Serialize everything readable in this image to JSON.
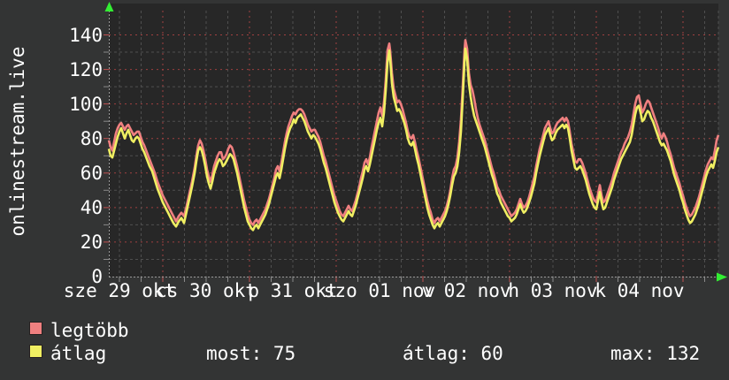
{
  "title": {
    "vertical": "onlinestream.live"
  },
  "legend": {
    "items": [
      {
        "label": "legtöbb",
        "color": "#f08080"
      },
      {
        "label": "átlag",
        "color": "#f0ef62"
      }
    ]
  },
  "stats": [
    {
      "text": "most: 75"
    },
    {
      "text": "átlag: 60"
    },
    {
      "text": "max: 132"
    }
  ],
  "colors": {
    "page_bg": "#333434",
    "plot_bg": "#272727",
    "grid_minor": "#4f4f4f",
    "grid_major": "#a04040",
    "axis": "#9a9a9a",
    "arrow": "#33ee33",
    "text": "#ffffff",
    "series_max": "#f08080",
    "series_avg": "#f0ef62"
  },
  "chart_data": {
    "type": "line",
    "title": "onlinestream.live",
    "ylabel": "",
    "xlabel": "",
    "ylim": [
      0,
      140
    ],
    "y_major_step": 20,
    "y_minor_step": 10,
    "grid": true,
    "legend_position": "bottom-left",
    "x_day_labels": [
      "sze 29 okt",
      "cs 30 okt",
      "p 31 okt",
      "szo 01 nov",
      "v 02 nov",
      "h 03 nov",
      "k 04 nov"
    ],
    "y_tick_labels": [
      "0",
      "20",
      "40",
      "60",
      "80",
      "100",
      "120",
      "140"
    ],
    "series": [
      {
        "name": "legtöbb",
        "color": "#f08080",
        "point_index": 2
      },
      {
        "name": "átlag",
        "color": "#f0ef62",
        "point_index": 1
      }
    ],
    "points_format": "[x_px, atlag_value, legtobb_value]",
    "points": [
      [
        123,
        74,
        79
      ],
      [
        125,
        70,
        75
      ],
      [
        127,
        69,
        73
      ],
      [
        129,
        73,
        78
      ],
      [
        131,
        77,
        83
      ],
      [
        133,
        81,
        86
      ],
      [
        135,
        84,
        88
      ],
      [
        137,
        86,
        89
      ],
      [
        139,
        83,
        87
      ],
      [
        141,
        80,
        85
      ],
      [
        143,
        83,
        87
      ],
      [
        145,
        85,
        88
      ],
      [
        147,
        82,
        86
      ],
      [
        149,
        79,
        84
      ],
      [
        151,
        78,
        82
      ],
      [
        153,
        80,
        83
      ],
      [
        155,
        81,
        84
      ],
      [
        157,
        80,
        84
      ],
      [
        159,
        77,
        81
      ],
      [
        161,
        74,
        78
      ],
      [
        163,
        72,
        76
      ],
      [
        166,
        68,
        72
      ],
      [
        169,
        64,
        68
      ],
      [
        172,
        61,
        64
      ],
      [
        175,
        56,
        60
      ],
      [
        178,
        51,
        55
      ],
      [
        181,
        47,
        51
      ],
      [
        184,
        43,
        47
      ],
      [
        187,
        40,
        44
      ],
      [
        190,
        37,
        41
      ],
      [
        193,
        34,
        38
      ],
      [
        196,
        31,
        35
      ],
      [
        199,
        29,
        32
      ],
      [
        202,
        32,
        35
      ],
      [
        205,
        34,
        37
      ],
      [
        208,
        31,
        35
      ],
      [
        211,
        38,
        41
      ],
      [
        214,
        45,
        48
      ],
      [
        217,
        52,
        55
      ],
      [
        220,
        60,
        63
      ],
      [
        222,
        67,
        70
      ],
      [
        224,
        73,
        76
      ],
      [
        226,
        75,
        79
      ],
      [
        228,
        73,
        77
      ],
      [
        230,
        69,
        73
      ],
      [
        232,
        64,
        68
      ],
      [
        234,
        58,
        62
      ],
      [
        236,
        54,
        58
      ],
      [
        238,
        51,
        55
      ],
      [
        240,
        55,
        59
      ],
      [
        242,
        60,
        64
      ],
      [
        244,
        63,
        67
      ],
      [
        246,
        66,
        70
      ],
      [
        248,
        68,
        72
      ],
      [
        250,
        67,
        72
      ],
      [
        252,
        64,
        68
      ],
      [
        254,
        65,
        69
      ],
      [
        256,
        67,
        71
      ],
      [
        258,
        69,
        74
      ],
      [
        260,
        71,
        76
      ],
      [
        262,
        70,
        75
      ],
      [
        264,
        68,
        72
      ],
      [
        266,
        64,
        68
      ],
      [
        268,
        60,
        64
      ],
      [
        270,
        55,
        59
      ],
      [
        272,
        50,
        54
      ],
      [
        274,
        45,
        49
      ],
      [
        276,
        40,
        44
      ],
      [
        278,
        36,
        40
      ],
      [
        280,
        32,
        36
      ],
      [
        282,
        30,
        33
      ],
      [
        284,
        28,
        31
      ],
      [
        286,
        27,
        30
      ],
      [
        288,
        29,
        32
      ],
      [
        290,
        30,
        33
      ],
      [
        292,
        28,
        31
      ],
      [
        294,
        30,
        33
      ],
      [
        296,
        32,
        35
      ],
      [
        298,
        34,
        37
      ],
      [
        300,
        36,
        39
      ],
      [
        302,
        39,
        42
      ],
      [
        304,
        42,
        45
      ],
      [
        306,
        46,
        49
      ],
      [
        308,
        50,
        53
      ],
      [
        310,
        54,
        57
      ],
      [
        312,
        58,
        62
      ],
      [
        314,
        60,
        64
      ],
      [
        316,
        57,
        61
      ],
      [
        318,
        62,
        66
      ],
      [
        320,
        68,
        72
      ],
      [
        322,
        74,
        78
      ],
      [
        324,
        79,
        83
      ],
      [
        326,
        83,
        87
      ],
      [
        328,
        86,
        90
      ],
      [
        330,
        88,
        93
      ],
      [
        332,
        91,
        95
      ],
      [
        334,
        89,
        94
      ],
      [
        336,
        92,
        96
      ],
      [
        338,
        93,
        97
      ],
      [
        340,
        94,
        97
      ],
      [
        342,
        92,
        96
      ],
      [
        344,
        90,
        94
      ],
      [
        346,
        87,
        91
      ],
      [
        348,
        84,
        88
      ],
      [
        350,
        82,
        86
      ],
      [
        352,
        80,
        84
      ],
      [
        354,
        82,
        85
      ],
      [
        356,
        81,
        85
      ],
      [
        358,
        79,
        83
      ],
      [
        360,
        77,
        81
      ],
      [
        362,
        74,
        78
      ],
      [
        364,
        70,
        74
      ],
      [
        366,
        66,
        70
      ],
      [
        368,
        63,
        67
      ],
      [
        370,
        59,
        63
      ],
      [
        372,
        55,
        59
      ],
      [
        374,
        51,
        55
      ],
      [
        376,
        47,
        51
      ],
      [
        378,
        43,
        47
      ],
      [
        380,
        40,
        44
      ],
      [
        382,
        37,
        41
      ],
      [
        384,
        35,
        38
      ],
      [
        386,
        33,
        36
      ],
      [
        388,
        32,
        35
      ],
      [
        390,
        34,
        37
      ],
      [
        392,
        36,
        39
      ],
      [
        394,
        38,
        41
      ],
      [
        396,
        36,
        39
      ],
      [
        398,
        35,
        38
      ],
      [
        400,
        38,
        41
      ],
      [
        402,
        41,
        44
      ],
      [
        404,
        45,
        48
      ],
      [
        406,
        49,
        52
      ],
      [
        408,
        53,
        57
      ],
      [
        410,
        57,
        61
      ],
      [
        412,
        62,
        66
      ],
      [
        414,
        64,
        68
      ],
      [
        416,
        61,
        65
      ],
      [
        418,
        65,
        69
      ],
      [
        420,
        70,
        75
      ],
      [
        422,
        75,
        80
      ],
      [
        424,
        80,
        85
      ],
      [
        426,
        85,
        90
      ],
      [
        428,
        89,
        95
      ],
      [
        430,
        92,
        98
      ],
      [
        432,
        87,
        93
      ],
      [
        434,
        95,
        101
      ],
      [
        436,
        108,
        114
      ],
      [
        438,
        124,
        131
      ],
      [
        440,
        131,
        135
      ],
      [
        441,
        126,
        131
      ],
      [
        443,
        112,
        118
      ],
      [
        445,
        104,
        109
      ],
      [
        447,
        100,
        105
      ],
      [
        449,
        96,
        101
      ],
      [
        451,
        97,
        102
      ],
      [
        453,
        95,
        100
      ],
      [
        455,
        92,
        97
      ],
      [
        457,
        89,
        93
      ],
      [
        459,
        85,
        89
      ],
      [
        461,
        80,
        84
      ],
      [
        463,
        77,
        81
      ],
      [
        465,
        76,
        80
      ],
      [
        467,
        78,
        82
      ],
      [
        469,
        74,
        78
      ],
      [
        471,
        69,
        73
      ],
      [
        473,
        65,
        69
      ],
      [
        475,
        60,
        64
      ],
      [
        477,
        55,
        59
      ],
      [
        479,
        50,
        54
      ],
      [
        481,
        45,
        49
      ],
      [
        483,
        40,
        44
      ],
      [
        485,
        36,
        40
      ],
      [
        487,
        33,
        37
      ],
      [
        489,
        30,
        33
      ],
      [
        491,
        28,
        31
      ],
      [
        493,
        30,
        33
      ],
      [
        495,
        31,
        34
      ],
      [
        497,
        29,
        32
      ],
      [
        499,
        31,
        34
      ],
      [
        501,
        33,
        36
      ],
      [
        503,
        35,
        38
      ],
      [
        505,
        38,
        41
      ],
      [
        507,
        42,
        45
      ],
      [
        509,
        47,
        50
      ],
      [
        511,
        53,
        57
      ],
      [
        513,
        58,
        62
      ],
      [
        515,
        60,
        64
      ],
      [
        517,
        64,
        69
      ],
      [
        519,
        72,
        78
      ],
      [
        521,
        84,
        91
      ],
      [
        523,
        103,
        110
      ],
      [
        525,
        124,
        131
      ],
      [
        526,
        132,
        137
      ],
      [
        528,
        126,
        132
      ],
      [
        530,
        112,
        118
      ],
      [
        532,
        104,
        111
      ],
      [
        534,
        98,
        108
      ],
      [
        536,
        93,
        103
      ],
      [
        538,
        90,
        97
      ],
      [
        540,
        87,
        92
      ],
      [
        542,
        84,
        88
      ],
      [
        544,
        81,
        85
      ],
      [
        546,
        78,
        82
      ],
      [
        548,
        75,
        79
      ],
      [
        550,
        71,
        75
      ],
      [
        552,
        67,
        71
      ],
      [
        554,
        63,
        67
      ],
      [
        556,
        59,
        63
      ],
      [
        558,
        56,
        60
      ],
      [
        560,
        52,
        56
      ],
      [
        562,
        48,
        52
      ],
      [
        564,
        46,
        50
      ],
      [
        566,
        43,
        47
      ],
      [
        568,
        41,
        45
      ],
      [
        570,
        39,
        43
      ],
      [
        572,
        37,
        41
      ],
      [
        574,
        35,
        39
      ],
      [
        576,
        34,
        37
      ],
      [
        578,
        32,
        35
      ],
      [
        580,
        33,
        36
      ],
      [
        582,
        34,
        37
      ],
      [
        584,
        36,
        39
      ],
      [
        586,
        39,
        42
      ],
      [
        588,
        42,
        45
      ],
      [
        590,
        39,
        42
      ],
      [
        592,
        37,
        40
      ],
      [
        594,
        38,
        41
      ],
      [
        596,
        40,
        43
      ],
      [
        598,
        43,
        46
      ],
      [
        600,
        46,
        50
      ],
      [
        602,
        50,
        54
      ],
      [
        604,
        54,
        58
      ],
      [
        606,
        60,
        64
      ],
      [
        608,
        65,
        69
      ],
      [
        610,
        70,
        74
      ],
      [
        612,
        74,
        78
      ],
      [
        614,
        78,
        82
      ],
      [
        616,
        82,
        86
      ],
      [
        618,
        84,
        88
      ],
      [
        620,
        86,
        90
      ],
      [
        622,
        82,
        86
      ],
      [
        624,
        79,
        83
      ],
      [
        626,
        80,
        84
      ],
      [
        628,
        83,
        87
      ],
      [
        630,
        85,
        89
      ],
      [
        632,
        86,
        90
      ],
      [
        634,
        87,
        91
      ],
      [
        636,
        88,
        92
      ],
      [
        638,
        86,
        90
      ],
      [
        640,
        88,
        92
      ],
      [
        642,
        86,
        90
      ],
      [
        644,
        80,
        84
      ],
      [
        646,
        73,
        77
      ],
      [
        648,
        68,
        72
      ],
      [
        650,
        63,
        67
      ],
      [
        652,
        62,
        66
      ],
      [
        654,
        63,
        68
      ],
      [
        656,
        64,
        68
      ],
      [
        658,
        62,
        66
      ],
      [
        660,
        59,
        63
      ],
      [
        662,
        56,
        60
      ],
      [
        664,
        52,
        56
      ],
      [
        666,
        48,
        52
      ],
      [
        668,
        45,
        49
      ],
      [
        670,
        42,
        46
      ],
      [
        672,
        40,
        44
      ],
      [
        674,
        39,
        43
      ],
      [
        676,
        44,
        48
      ],
      [
        678,
        49,
        53
      ],
      [
        680,
        43,
        47
      ],
      [
        682,
        39,
        43
      ],
      [
        684,
        40,
        44
      ],
      [
        686,
        43,
        47
      ],
      [
        688,
        46,
        50
      ],
      [
        690,
        49,
        53
      ],
      [
        692,
        52,
        56
      ],
      [
        694,
        56,
        60
      ],
      [
        696,
        59,
        63
      ],
      [
        698,
        62,
        66
      ],
      [
        700,
        65,
        69
      ],
      [
        702,
        68,
        72
      ],
      [
        704,
        70,
        74
      ],
      [
        706,
        72,
        77
      ],
      [
        708,
        74,
        79
      ],
      [
        710,
        76,
        81
      ],
      [
        712,
        78,
        84
      ],
      [
        714,
        82,
        88
      ],
      [
        716,
        88,
        94
      ],
      [
        718,
        94,
        100
      ],
      [
        720,
        98,
        104
      ],
      [
        722,
        99,
        105
      ],
      [
        724,
        95,
        100
      ],
      [
        726,
        90,
        95
      ],
      [
        728,
        91,
        97
      ],
      [
        730,
        94,
        100
      ],
      [
        732,
        96,
        102
      ],
      [
        734,
        95,
        101
      ],
      [
        736,
        92,
        98
      ],
      [
        738,
        90,
        95
      ],
      [
        740,
        87,
        92
      ],
      [
        742,
        84,
        89
      ],
      [
        744,
        81,
        86
      ],
      [
        746,
        78,
        82
      ],
      [
        748,
        76,
        80
      ],
      [
        750,
        77,
        83
      ],
      [
        752,
        75,
        81
      ],
      [
        754,
        73,
        78
      ],
      [
        756,
        70,
        74
      ],
      [
        758,
        67,
        71
      ],
      [
        760,
        63,
        67
      ],
      [
        762,
        59,
        63
      ],
      [
        764,
        56,
        60
      ],
      [
        766,
        53,
        57
      ],
      [
        768,
        50,
        54
      ],
      [
        770,
        46,
        50
      ],
      [
        772,
        43,
        47
      ],
      [
        774,
        39,
        43
      ],
      [
        776,
        36,
        40
      ],
      [
        778,
        33,
        37
      ],
      [
        780,
        31,
        35
      ],
      [
        782,
        32,
        36
      ],
      [
        784,
        34,
        38
      ],
      [
        786,
        36,
        40
      ],
      [
        788,
        39,
        43
      ],
      [
        790,
        42,
        46
      ],
      [
        792,
        46,
        50
      ],
      [
        794,
        50,
        54
      ],
      [
        796,
        54,
        58
      ],
      [
        798,
        58,
        62
      ],
      [
        800,
        61,
        65
      ],
      [
        802,
        63,
        67
      ],
      [
        804,
        65,
        69
      ],
      [
        806,
        63,
        68
      ],
      [
        808,
        67,
        73
      ],
      [
        810,
        72,
        79
      ],
      [
        812,
        75,
        82
      ]
    ],
    "stats": {
      "most": 75,
      "atlag": 60,
      "max": 132
    }
  }
}
